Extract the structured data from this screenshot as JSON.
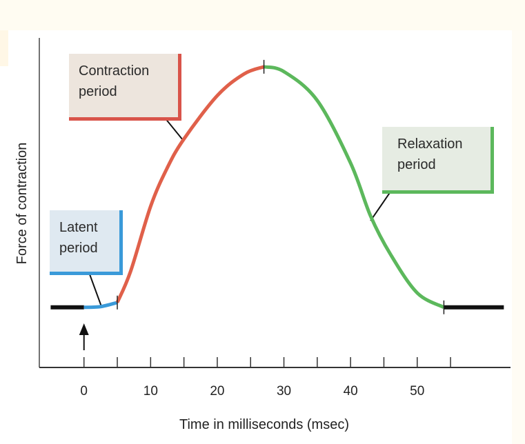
{
  "chart_data": {
    "type": "line",
    "xlabel": "Time in milliseconds (msec)",
    "ylabel": "Force of contraction",
    "xlim": [
      -6.7,
      64
    ],
    "ylim": [
      -0.25,
      1.12
    ],
    "x_ticks": [
      0,
      5,
      10,
      15,
      20,
      25,
      30,
      35,
      40,
      45,
      50,
      55
    ],
    "x_tick_labels": [
      "0",
      "10",
      "20",
      "30",
      "40",
      "50"
    ],
    "x_tick_label_values": [
      0,
      10,
      20,
      30,
      40,
      50
    ],
    "grid": false,
    "stimulus_arrow_at": 0,
    "segments": [
      {
        "phase": "rest-before",
        "color": "#111111",
        "x": [
          -5,
          0
        ],
        "y": [
          0,
          0
        ]
      },
      {
        "phase": "latent",
        "color": "#3a9ad9",
        "x": [
          0,
          2.5,
          5
        ],
        "y": [
          0,
          0.003,
          0.02
        ]
      },
      {
        "phase": "contraction",
        "color": "#e0604a",
        "x": [
          5,
          7,
          10,
          12.5,
          15,
          20,
          24,
          27
        ],
        "y": [
          0.02,
          0.15,
          0.42,
          0.58,
          0.7,
          0.88,
          0.97,
          1.0
        ]
      },
      {
        "phase": "relaxation",
        "color": "#5cb85c",
        "x": [
          27,
          30,
          35,
          40,
          43,
          46,
          50,
          54
        ],
        "y": [
          1.0,
          0.98,
          0.86,
          0.6,
          0.38,
          0.22,
          0.06,
          0.0
        ]
      },
      {
        "phase": "rest-after",
        "color": "#111111",
        "x": [
          54,
          63
        ],
        "y": [
          0,
          0
        ]
      }
    ],
    "phase_markers": [
      5,
      27,
      54
    ],
    "annotations": [
      {
        "text_lines": [
          "Contraction",
          "period"
        ],
        "color": "#d9544a",
        "bg": "#ede5dd",
        "points_to": [
          15,
          0.69
        ]
      },
      {
        "text_lines": [
          "Latent",
          "period"
        ],
        "color": "#3a9ad9",
        "bg": "#dfe9f1",
        "points_to": [
          2.6,
          0.005
        ]
      },
      {
        "text_lines": [
          "Relaxation",
          "period"
        ],
        "color": "#5cb85c",
        "bg": "#e6ece3",
        "points_to": [
          43,
          0.36
        ]
      }
    ]
  }
}
